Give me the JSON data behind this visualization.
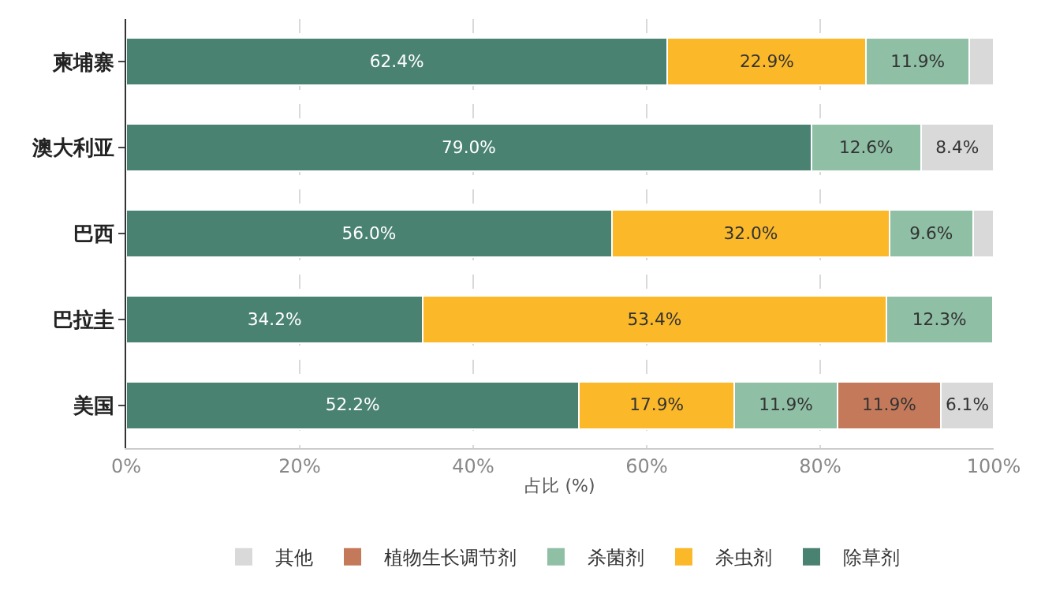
{
  "chart_data": {
    "type": "bar",
    "orientation": "horizontal",
    "stacked": true,
    "xlabel": "占比 (%)",
    "categories": [
      "柬埔寨",
      "澳大利亚",
      "巴西",
      "巴拉圭",
      "美国"
    ],
    "series": [
      {
        "name": "除草剂",
        "color": "#4a8272",
        "values": [
          62.4,
          79.0,
          56.0,
          34.2,
          52.2
        ],
        "value_labels": [
          "62.4%",
          "79.0%",
          "56.0%",
          "34.2%",
          "52.2%"
        ]
      },
      {
        "name": "杀虫剂",
        "color": "#fbb829",
        "values": [
          22.9,
          null,
          32.0,
          53.4,
          17.9
        ],
        "value_labels": [
          "22.9%",
          null,
          "32.0%",
          "53.4%",
          "17.9%"
        ]
      },
      {
        "name": "杀菌剂",
        "color": "#8fbfa5",
        "values": [
          11.9,
          12.6,
          9.6,
          12.3,
          11.9
        ],
        "value_labels": [
          "11.9%",
          "12.6%",
          "9.6%",
          "12.3%",
          "11.9%"
        ]
      },
      {
        "name": "植物生长调节剂",
        "color": "#c47a5a",
        "values": [
          null,
          null,
          null,
          null,
          11.9
        ],
        "value_labels": [
          null,
          null,
          null,
          null,
          "11.9%"
        ]
      },
      {
        "name": "其他",
        "color": "#d9d9d9",
        "values": [
          2.8,
          8.4,
          2.4,
          null,
          6.1
        ],
        "value_labels": [
          null,
          "8.4%",
          null,
          null,
          "6.1%"
        ]
      }
    ],
    "xlim": [
      0,
      100
    ],
    "xticks": [
      {
        "value": 0,
        "label": "0%"
      },
      {
        "value": 20,
        "label": "20%"
      },
      {
        "value": 40,
        "label": "40%"
      },
      {
        "value": 60,
        "label": "60%"
      },
      {
        "value": 80,
        "label": "80%"
      },
      {
        "value": 100,
        "label": "100%"
      }
    ],
    "grid": "x",
    "legend": "bottom"
  }
}
